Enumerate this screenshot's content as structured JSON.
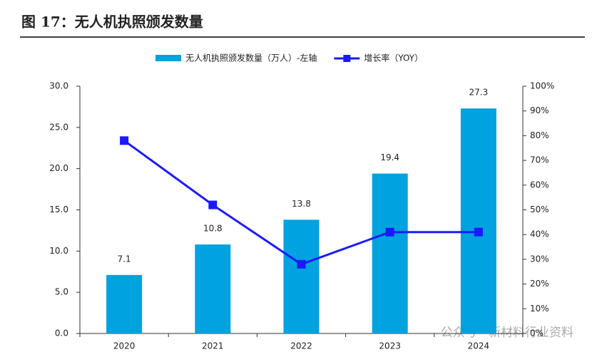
{
  "chart_data": {
    "type": "combo",
    "title": "图 17：无人机执照颁发数量",
    "categories": [
      "2020",
      "2021",
      "2022",
      "2023",
      "2024"
    ],
    "series": [
      {
        "name": "无人机执照颁发数量（万人）-左轴",
        "type": "bar",
        "color": "#00a2e0",
        "values": [
          7.1,
          10.8,
          13.8,
          19.4,
          27.3
        ]
      },
      {
        "name": "增长率（YOY）",
        "type": "line",
        "axis": "y2",
        "color": "#1a1aff",
        "values": [
          78,
          52,
          28,
          41,
          41
        ]
      }
    ],
    "ylim": [
      0,
      30
    ],
    "yticks": [
      {
        "value": 0,
        "label": "0.0"
      },
      {
        "value": 5,
        "label": "5.0"
      },
      {
        "value": 10,
        "label": "10.0"
      },
      {
        "value": 15,
        "label": "15.0"
      },
      {
        "value": 20,
        "label": "20.0"
      },
      {
        "value": 25,
        "label": "25.0"
      },
      {
        "value": 30,
        "label": "30.0"
      }
    ],
    "y2lim": [
      0,
      100
    ],
    "y2ticks": [
      {
        "value": 0,
        "label": "0%"
      },
      {
        "value": 10,
        "label": "10%"
      },
      {
        "value": 20,
        "label": "20%"
      },
      {
        "value": 30,
        "label": "30%"
      },
      {
        "value": 40,
        "label": "40%"
      },
      {
        "value": 50,
        "label": "50%"
      },
      {
        "value": 60,
        "label": "60%"
      },
      {
        "value": 70,
        "label": "70%"
      },
      {
        "value": 80,
        "label": "80%"
      },
      {
        "value": 90,
        "label": "90%"
      },
      {
        "value": 100,
        "label": "100%"
      }
    ],
    "legend": "top"
  },
  "watermark": "公众号 · 新材料行业资料"
}
